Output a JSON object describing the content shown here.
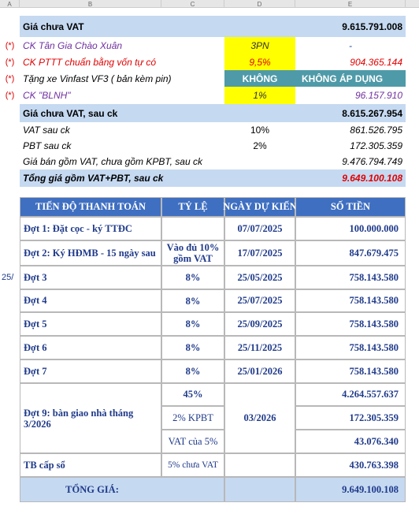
{
  "columns": [
    "A",
    "B",
    "C",
    "D",
    "E"
  ],
  "side_note": "25/",
  "summary": [
    {
      "label": "Giá chưa VAT",
      "value": "9.615.791.008"
    },
    {
      "marker": "(*)",
      "label": "CK Tân Gia Chào Xuân",
      "rate": "3PN",
      "value": "-"
    },
    {
      "marker": "(*)",
      "label": "CK PTTT chuẩn bằng vốn tự có",
      "rate": "9,5%",
      "value": "904.365.144"
    },
    {
      "marker": "(*)",
      "label": "Tặng xe Vinfast VF3 ( bản kèm pin)",
      "rate": "KHÔNG",
      "value": "KHÔNG ÁP DỤNG"
    },
    {
      "marker": "(*)",
      "label": "CK \"BLNH\"",
      "rate": "1%",
      "value": "96.157.910"
    },
    {
      "label": "Giá chưa VAT, sau ck",
      "value": "8.615.267.954"
    },
    {
      "label": "VAT sau ck",
      "rate": "10%",
      "value": "861.526.795"
    },
    {
      "label": "PBT sau ck",
      "rate": "2%",
      "value": "172.305.359"
    },
    {
      "label": "Giá bán gồm VAT, chưa gồm KPBT, sau ck",
      "value": "9.476.794.749"
    },
    {
      "label": "Tổng giá gồm VAT+PBT, sau ck",
      "value": "9.649.100.108"
    }
  ],
  "schedule": {
    "header": [
      "TIẾN ĐỘ THANH TOÁN",
      "TỶ LỆ",
      "NGÀY DỰ KIẾN",
      "SỐ TIỀN"
    ],
    "rows": [
      {
        "label": "Đợt 1: Đặt cọc - ký TTĐC",
        "date": "07/07/2025",
        "amount": "100.000.000"
      },
      {
        "label": "Đợt 2: Ký HĐMB - 15 ngày sau",
        "rate": "Vào đủ 10% gồm VAT",
        "date": "17/07/2025",
        "amount": "847.679.475"
      },
      {
        "label": "Đợt 3",
        "rate": "8%",
        "date": "25/05/2025",
        "amount": "758.143.580"
      },
      {
        "label": "Đợt 4",
        "rate": "8%",
        "date": "25/07/2025",
        "amount": "758.143.580"
      },
      {
        "label": "Đợt 5",
        "rate": "8%",
        "date": "25/09/2025",
        "amount": "758.143.580"
      },
      {
        "label": "Đợt 6",
        "rate": "8%",
        "date": "25/11/2025",
        "amount": "758.143.580"
      },
      {
        "label": "Đợt 7",
        "rate": "8%",
        "date": "25/01/2026",
        "amount": "758.143.580"
      }
    ],
    "handover": {
      "label": "Đợt 9: bàn giao nhà tháng 3/2026",
      "date": "03/2026",
      "parts": [
        {
          "rate": "45%",
          "amount": "4.264.557.637"
        },
        {
          "rate": "2% KPBT",
          "amount": "172.305.359"
        },
        {
          "rate": "VAT của 5%",
          "amount": "43.076.340"
        }
      ]
    },
    "certificate": {
      "label": "TB cấp sổ",
      "rate": "5% chưa VAT",
      "amount": "430.763.398"
    },
    "total": {
      "label": "TỔNG GIÁ:",
      "amount": "9.649.100.108"
    }
  }
}
